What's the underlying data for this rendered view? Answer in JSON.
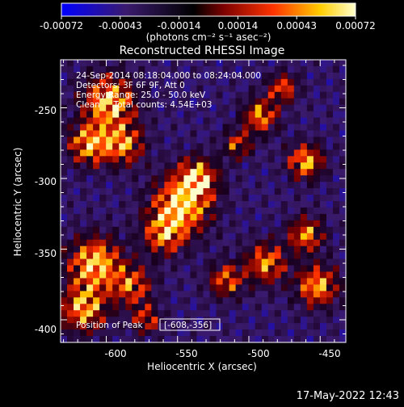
{
  "colorbar": {
    "tick_labels": [
      "-0.00072",
      "-0.00043",
      "-0.00014",
      "0.00014",
      "0.00043",
      "0.00072"
    ],
    "units_label": "(photons cm⁻² s⁻¹ asec⁻²)",
    "range": [
      -0.00072,
      0.00072
    ],
    "colors": [
      "#0000ff",
      "#3a1a6e",
      "#000000",
      "#7a0000",
      "#ff3300",
      "#ffcc00",
      "#ffffcc"
    ]
  },
  "plot": {
    "title": "Reconstructed RHESSI Image",
    "info_lines": [
      "24-Sep-2014 08:18:04.000 to 08:24:04.000",
      "Detectors: 3F 6F 9F, Att 0",
      "Energy Range: 25.0 - 50.0 keV",
      "Clean     Total counts: 4.54E+03"
    ],
    "peak_label": "Position of Peak",
    "peak_value": "[-608,-356]",
    "xlabel": "Heliocentric X (arcsec)",
    "ylabel": "Heliocentric Y (arcsec)",
    "x_ticks": [
      "-600",
      "-550",
      "-500",
      "-450"
    ],
    "y_ticks": [
      "-250",
      "-300",
      "-350",
      "-400"
    ],
    "xlim": [
      -632,
      -432
    ],
    "ylim": [
      -416,
      -216
    ]
  },
  "footer": {
    "timestamp": "17-May-2022 12:43"
  }
}
